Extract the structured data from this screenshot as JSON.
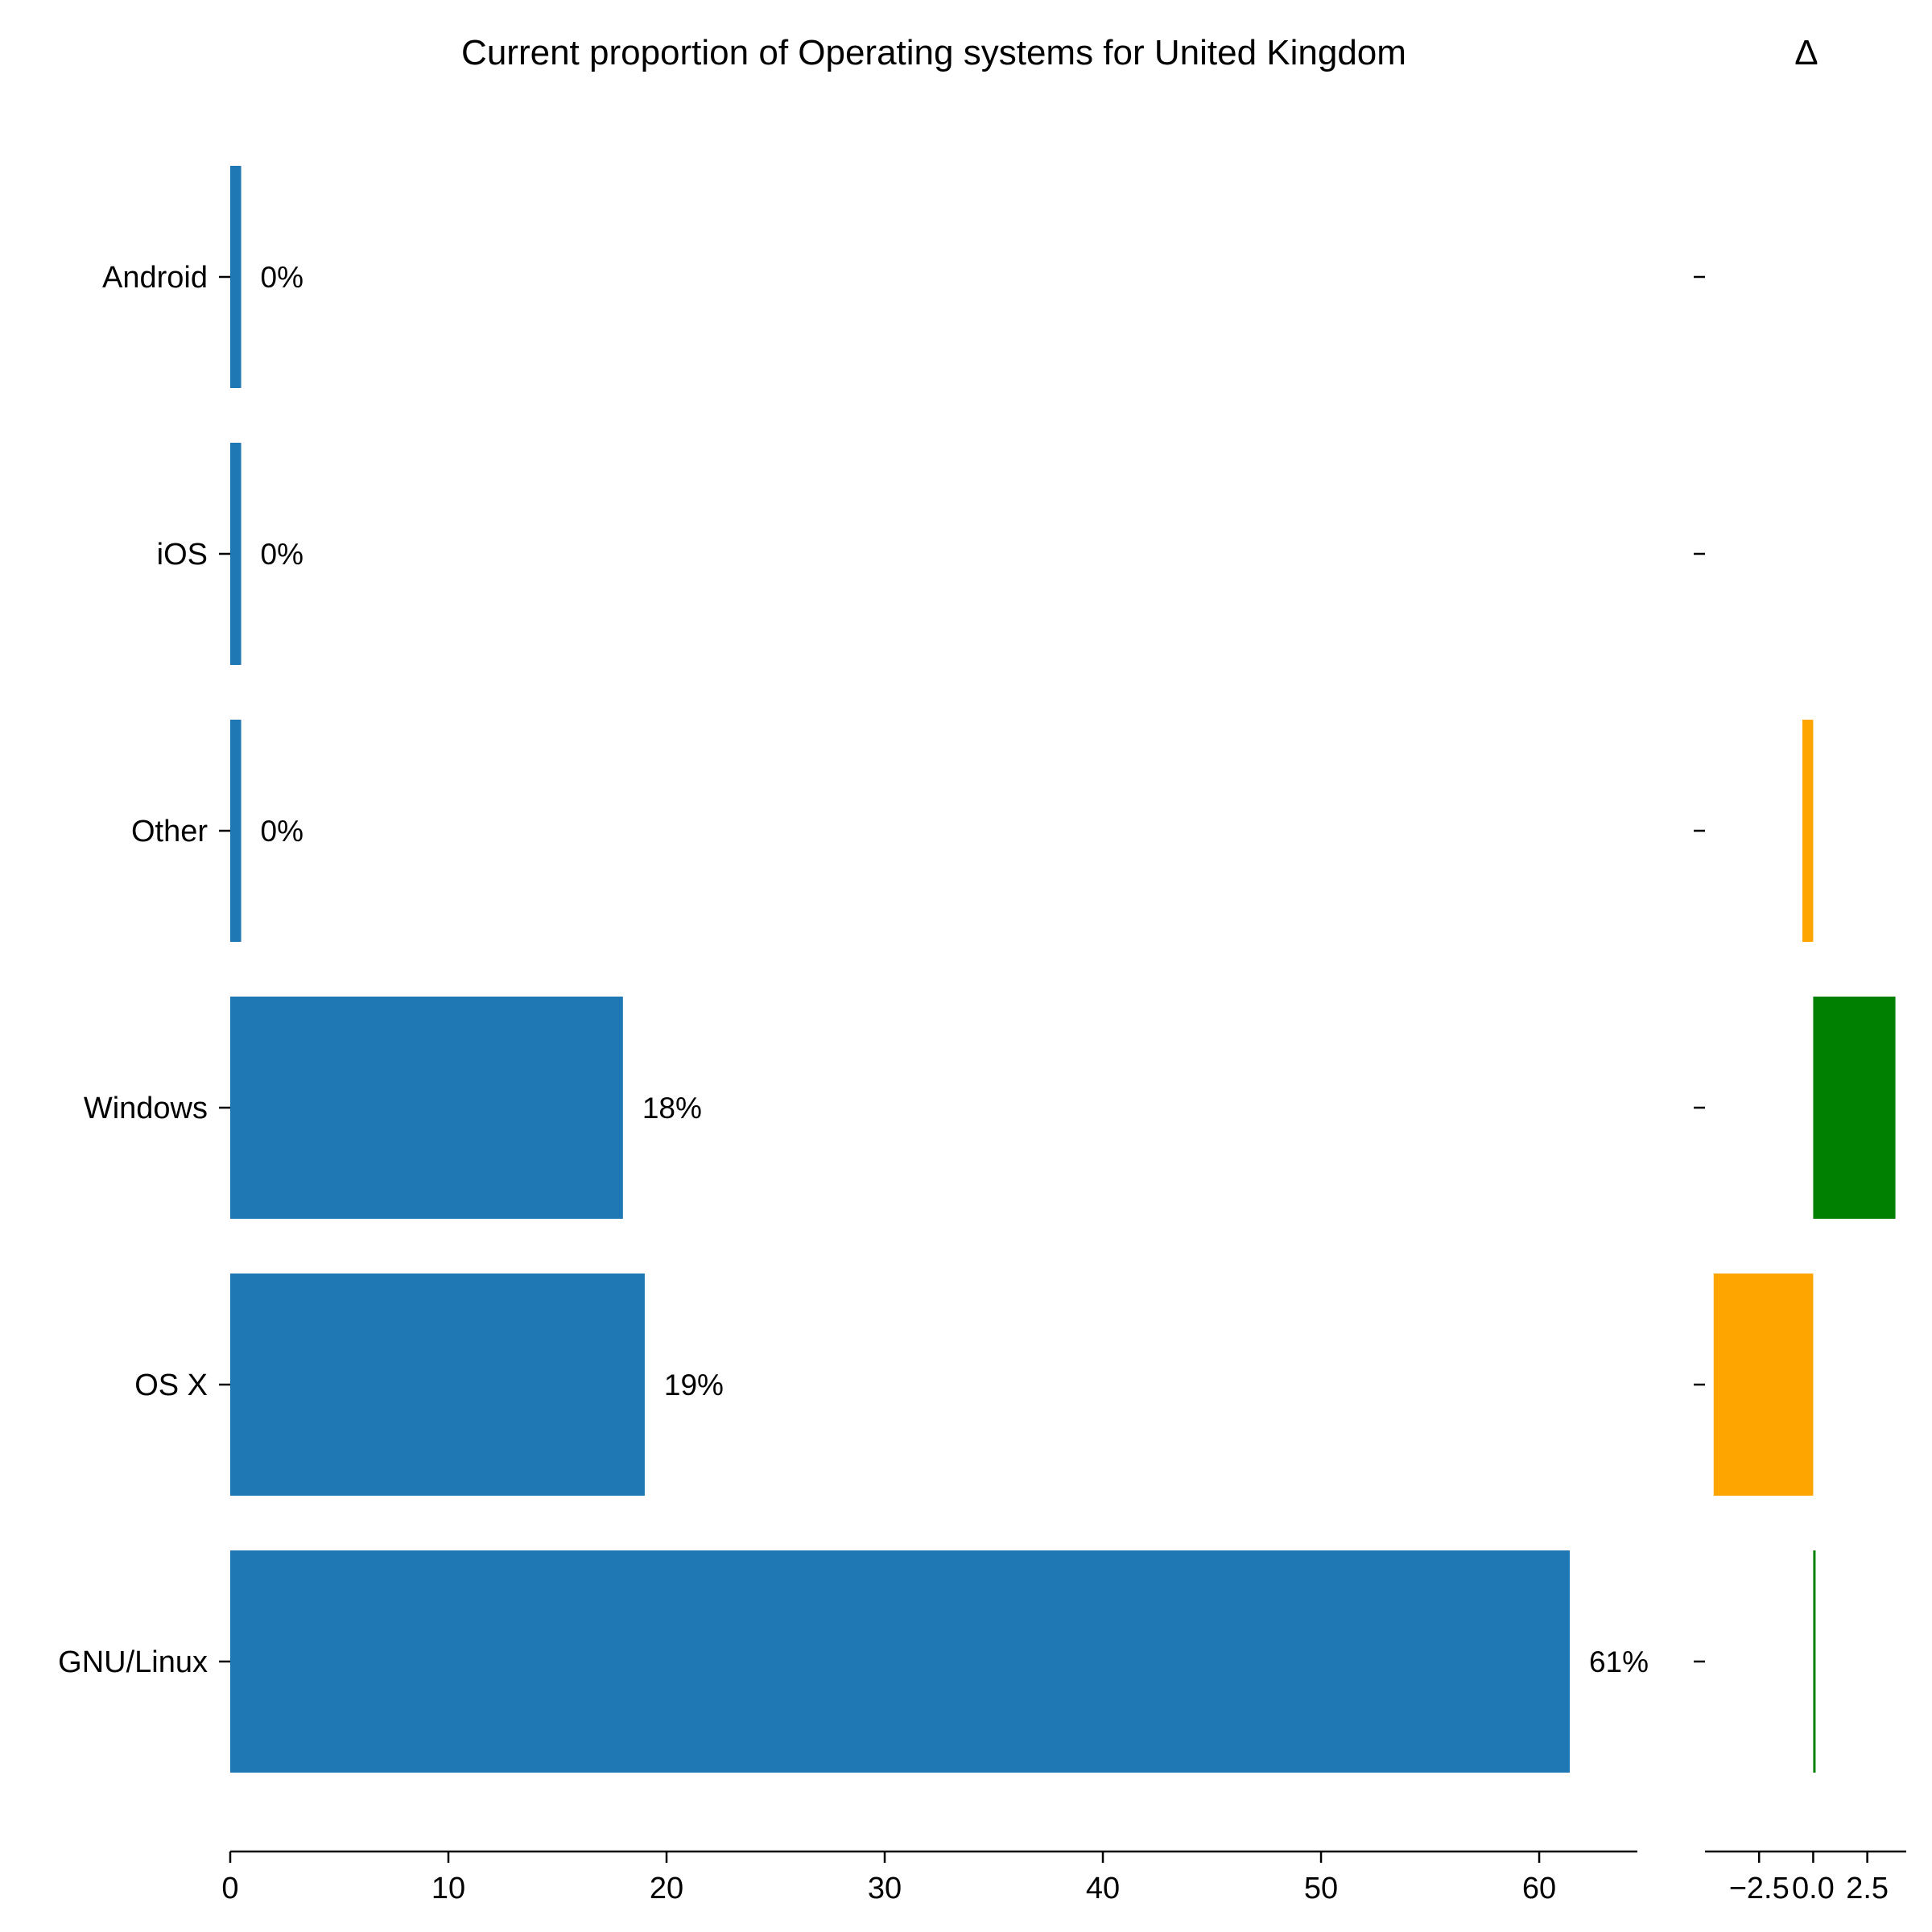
{
  "chart_data": [
    {
      "type": "bar",
      "orientation": "horizontal",
      "title": "Current proportion of Operating systems for United Kingdom",
      "categories": [
        "Android",
        "iOS",
        "Other",
        "Windows",
        "OS X",
        "GNU/Linux"
      ],
      "values": [
        0.5,
        0.5,
        0.5,
        18.0,
        19.0,
        61.4
      ],
      "data_labels": [
        "0%",
        "0%",
        "0%",
        "18%",
        "19%",
        "61%"
      ],
      "xlim": [
        0,
        64.5
      ],
      "xticks": [
        0,
        10,
        20,
        30,
        40,
        50,
        60
      ],
      "xtick_labels": [
        "0",
        "10",
        "20",
        "30",
        "40",
        "50",
        "60"
      ],
      "bar_color": "#1f77b4",
      "grid": false
    },
    {
      "type": "bar",
      "orientation": "horizontal",
      "title": "Δ",
      "categories": [
        "Android",
        "iOS",
        "Other",
        "Windows",
        "OS X",
        "GNU/Linux"
      ],
      "values": [
        0,
        0,
        -0.5,
        3.8,
        -4.6,
        0.1
      ],
      "xlim": [
        -5,
        4.3
      ],
      "xticks": [
        -2.5,
        0.0,
        2.5
      ],
      "xtick_labels": [
        "−2.5",
        "0.0",
        "2.5"
      ],
      "positive_color": "#008000",
      "negative_color": "#ffa500",
      "grid": false
    }
  ]
}
